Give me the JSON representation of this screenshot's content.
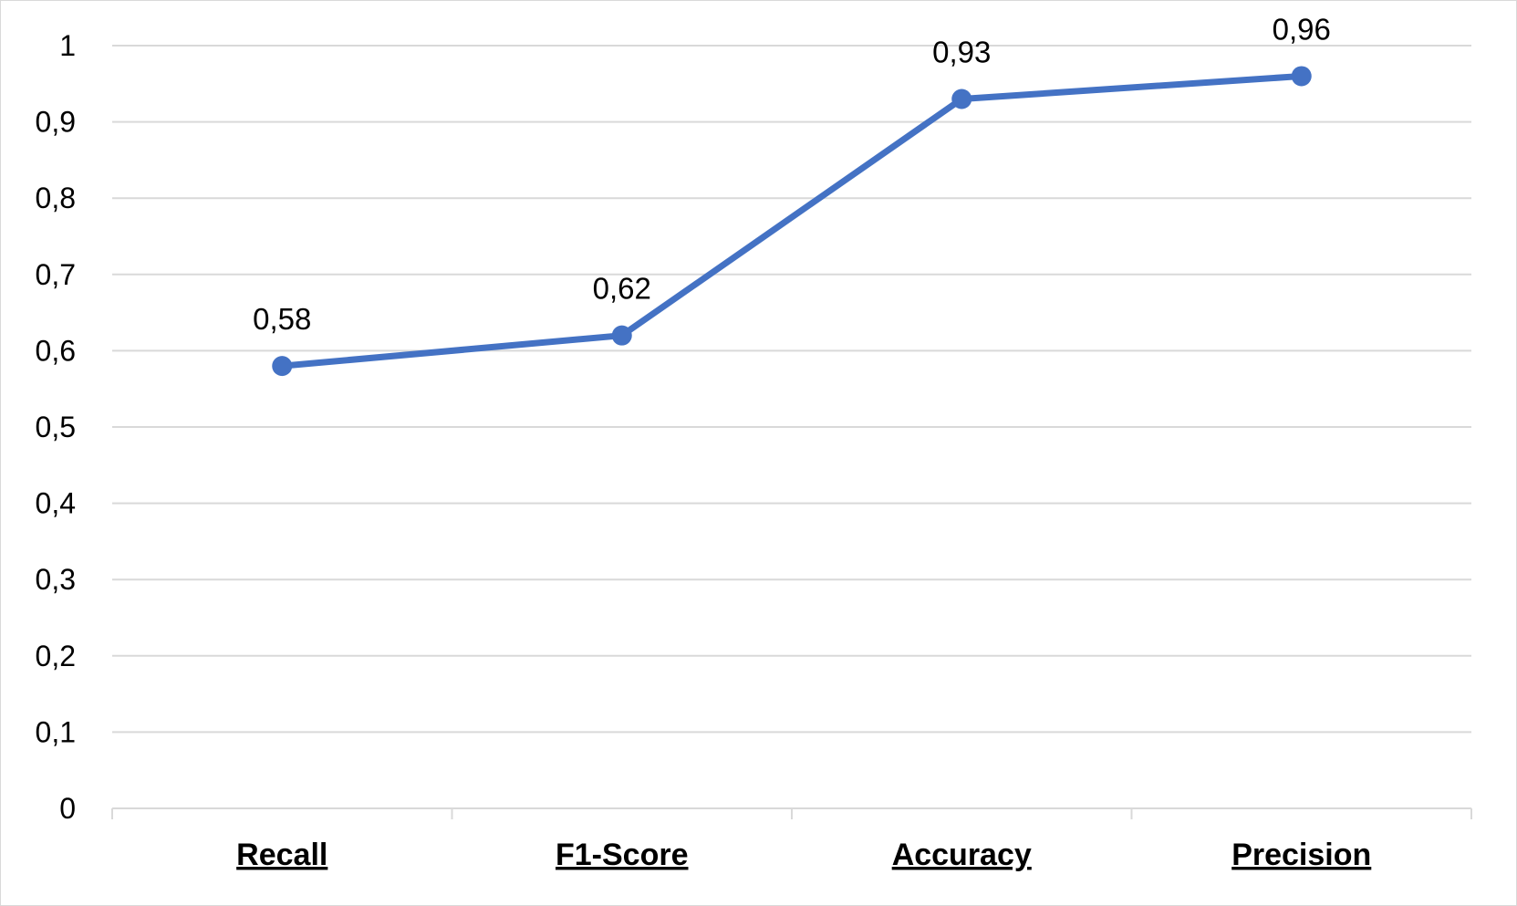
{
  "chart_data": {
    "type": "line",
    "categories": [
      "Recall",
      "F1-Score",
      "Accuracy",
      "Precision"
    ],
    "values": [
      0.58,
      0.62,
      0.93,
      0.96
    ],
    "data_labels": [
      "0,58",
      "0,62",
      "0,93",
      "0,96"
    ],
    "y_ticks": [
      "0",
      "0,1",
      "0,2",
      "0,3",
      "0,4",
      "0,5",
      "0,6",
      "0,7",
      "0,8",
      "0,9",
      "1"
    ],
    "ylim": [
      0,
      1
    ],
    "grid": true,
    "legend": "none",
    "series_color": "#4472c4",
    "gridline_color": "#d9d9d9"
  }
}
